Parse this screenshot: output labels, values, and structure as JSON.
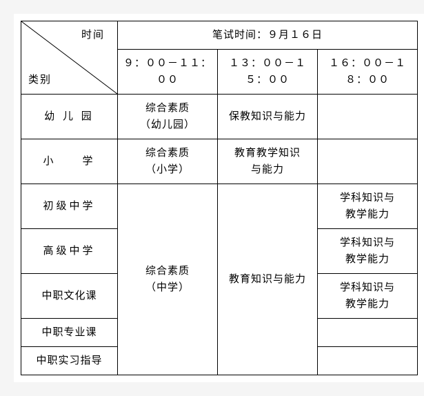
{
  "header": {
    "diag_top": "时间",
    "diag_bottom": "类别",
    "exam_title": "笔试时间：９月１６日",
    "slot1": "９：００－１１：００",
    "slot2": "１３：００－１５：００",
    "slot3": "１６：００－１８：００"
  },
  "rows": {
    "kindergarten": {
      "label": "幼 儿 园",
      "s1": "综合素质\n（幼儿园）",
      "s2": "保教知识与能力",
      "s3": ""
    },
    "primary": {
      "label": "小　　学",
      "s1": "综合素质\n（小学）",
      "s2": "教育教学知识\n与能力",
      "s3": ""
    },
    "junior": {
      "label": "初级中学",
      "s3": "学科知识与\n教学能力"
    },
    "senior": {
      "label": "高级中学",
      "s3": "学科知识与\n教学能力"
    },
    "voc_culture": {
      "label": "中职文化课",
      "s3": "学科知识与\n教学能力"
    },
    "voc_major": {
      "label": "中职专业课",
      "s3": ""
    },
    "voc_intern": {
      "label": "中职实习指导",
      "s3": ""
    },
    "middle_merged": {
      "s1": "综合素质\n（中学）",
      "s2": "教育知识与能力"
    }
  }
}
